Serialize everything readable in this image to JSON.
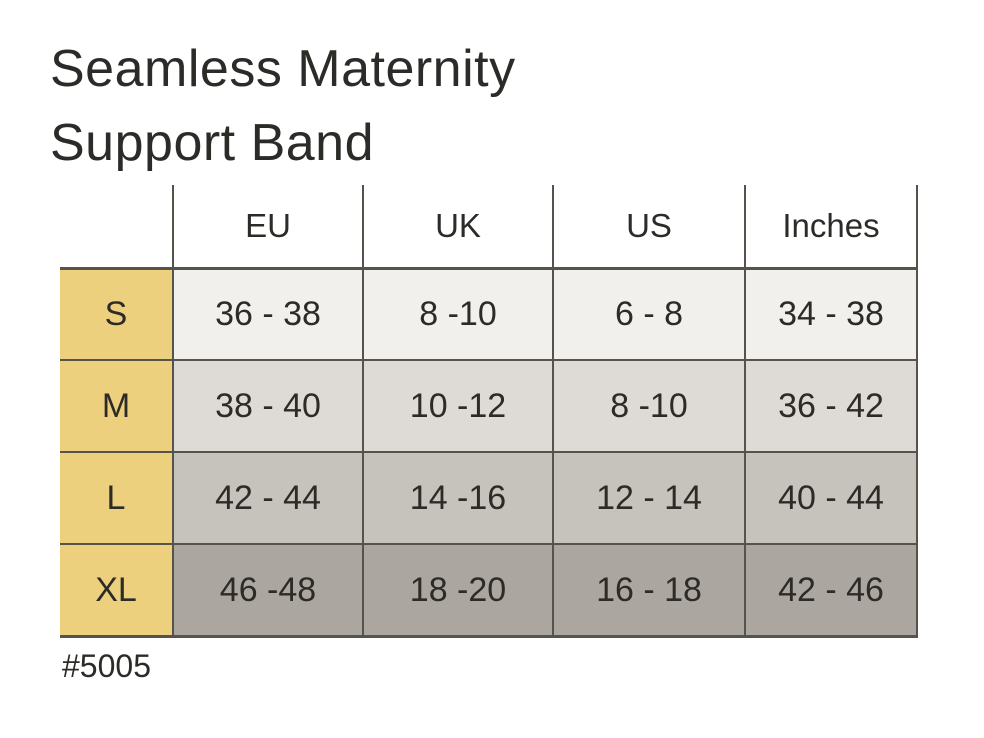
{
  "title": {
    "line1": "Seamless Maternity",
    "line2": "Support Band"
  },
  "product_code": "#5005",
  "colors": {
    "accent_yellow": "#ecd07d",
    "row_s_bg": "#f1f0ed",
    "row_m_bg": "#dedbd6",
    "row_l_bg": "#c6c2bc",
    "row_xl_bg": "#aba7a0",
    "border": "#56524c",
    "text": "#2d2b28",
    "header_bg": "#ffffff",
    "page_bg": "#ffffff"
  },
  "chart_data": {
    "type": "table",
    "title": "Seamless Maternity Support Band",
    "columns": [
      "",
      "EU",
      "UK",
      "US",
      "Inches"
    ],
    "rows": [
      {
        "label": "S",
        "values": [
          "36 - 38",
          "8 -10",
          "6 - 8",
          "34 - 38"
        ]
      },
      {
        "label": "M",
        "values": [
          "38 - 40",
          "10 -12",
          "8 -10",
          "36 - 42"
        ]
      },
      {
        "label": "L",
        "values": [
          "42 - 44",
          "14 -16",
          "12 - 14",
          "40 - 44"
        ]
      },
      {
        "label": "XL",
        "values": [
          "46 -48",
          "18 -20",
          "16 - 18",
          "42 - 46"
        ]
      }
    ],
    "layout": {
      "size_column_highlight": "yellow",
      "row_shading": "light-to-dark from S to XL",
      "grid": "on"
    }
  }
}
